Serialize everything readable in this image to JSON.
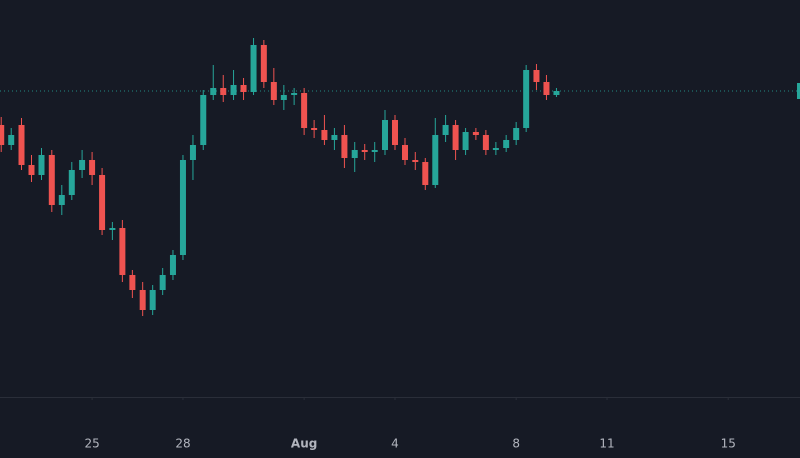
{
  "chart_data": {
    "type": "candlestick",
    "x": [
      22,
      22.33,
      22.67,
      23,
      23.33,
      23.67,
      24,
      24.33,
      24.67,
      25,
      25.33,
      25.67,
      26,
      26.33,
      26.67,
      27,
      27.33,
      27.67,
      28,
      28.33,
      28.67,
      29,
      29.33,
      29.67,
      30,
      30.33,
      30.67,
      31,
      31.33,
      31.67,
      32,
      32.33,
      32.67,
      33,
      33.33,
      33.67,
      34,
      34.33,
      34.67,
      35,
      35.33,
      35.67,
      36,
      36.33,
      36.67,
      37,
      37.33,
      37.67,
      38,
      38.33,
      38.67,
      39,
      39.33,
      39.67,
      40,
      40.33
    ],
    "open": [
      275,
      255,
      275,
      235,
      225,
      245,
      195,
      205,
      230,
      240,
      225,
      170,
      172,
      125,
      110,
      90,
      110,
      125,
      145,
      240,
      255,
      305,
      312,
      305,
      315,
      308,
      355,
      318,
      300,
      305,
      307,
      272,
      270,
      260,
      265,
      242,
      250,
      248,
      250,
      280,
      255,
      240,
      238,
      215,
      265,
      275,
      250,
      268,
      265,
      250,
      252,
      260,
      272,
      330,
      318,
      305
    ],
    "high": [
      283,
      272,
      282,
      245,
      252,
      250,
      215,
      238,
      250,
      248,
      232,
      178,
      180,
      130,
      118,
      115,
      132,
      150,
      245,
      265,
      310,
      335,
      325,
      330,
      322,
      362,
      360,
      332,
      315,
      312,
      312,
      280,
      285,
      272,
      275,
      258,
      256,
      258,
      290,
      285,
      262,
      248,
      242,
      282,
      285,
      280,
      272,
      272,
      270,
      258,
      265,
      278,
      335,
      336,
      325,
      312
    ],
    "low": [
      248,
      250,
      230,
      218,
      220,
      188,
      185,
      200,
      222,
      215,
      165,
      160,
      118,
      102,
      84,
      85,
      105,
      120,
      140,
      220,
      250,
      300,
      298,
      300,
      300,
      305,
      312,
      295,
      290,
      295,
      265,
      262,
      255,
      250,
      232,
      228,
      240,
      238,
      245,
      250,
      235,
      230,
      210,
      212,
      258,
      240,
      245,
      260,
      245,
      245,
      248,
      255,
      268,
      310,
      300,
      303
    ],
    "close": [
      255,
      265,
      235,
      225,
      245,
      195,
      205,
      230,
      240,
      225,
      170,
      172,
      125,
      110,
      90,
      110,
      125,
      145,
      240,
      255,
      305,
      312,
      305,
      315,
      308,
      355,
      318,
      300,
      305,
      307,
      272,
      270,
      260,
      265,
      242,
      250,
      248,
      250,
      280,
      255,
      240,
      238,
      215,
      265,
      275,
      250,
      268,
      265,
      250,
      252,
      260,
      272,
      330,
      318,
      305,
      309
    ],
    "up_color": "#26a69a",
    "down_color": "#ef5350",
    "xlim": [
      21.96,
      48.37
    ],
    "xticks": [
      25,
      28,
      {
        "value": 32,
        "label": "Aug"
      },
      {
        "value": 35,
        "label": "4"
      },
      {
        "value": 39,
        "label": "8"
      },
      {
        "value": 42,
        "label": "11"
      },
      {
        "value": 46,
        "label": "15"
      }
    ],
    "ylim": [
      3,
      400
    ]
  }
}
